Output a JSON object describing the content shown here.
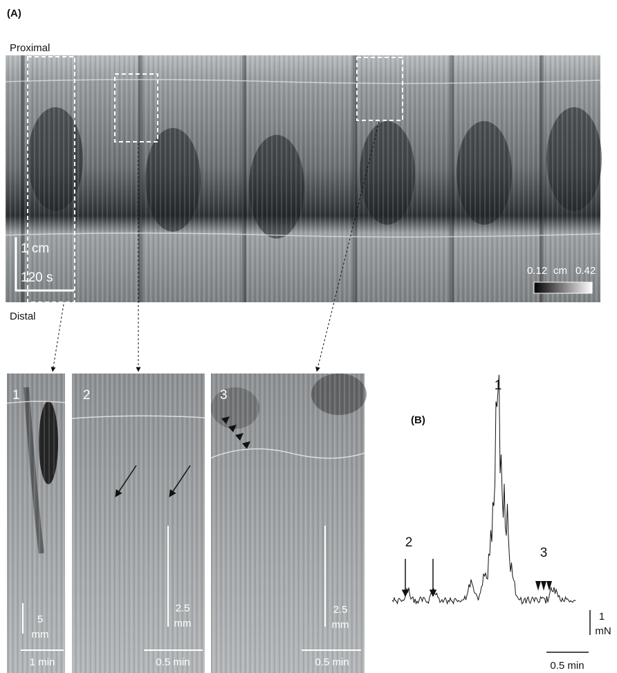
{
  "panel_a": {
    "label": "(A)",
    "proximal": "Proximal",
    "distal": "Distal",
    "scale_length": "1 cm",
    "scale_time": "120 s",
    "colorbar": {
      "min": "0.12",
      "unit": "cm",
      "max": "0.42"
    }
  },
  "insets": [
    {
      "label": "1",
      "scale_length": [
        "5",
        "mm"
      ],
      "scale_time": "1 min"
    },
    {
      "label": "2",
      "scale_length": [
        "2.5",
        "mm"
      ],
      "scale_time": "0.5 min"
    },
    {
      "label": "3",
      "scale_length": [
        "2.5",
        "mm"
      ],
      "scale_time": "0.5 min"
    }
  ],
  "panel_b": {
    "label": "(B)",
    "peak_labels": [
      "1",
      "2",
      "3"
    ],
    "scale_force": [
      "1",
      "mN"
    ],
    "scale_time": "0.5 min"
  }
}
